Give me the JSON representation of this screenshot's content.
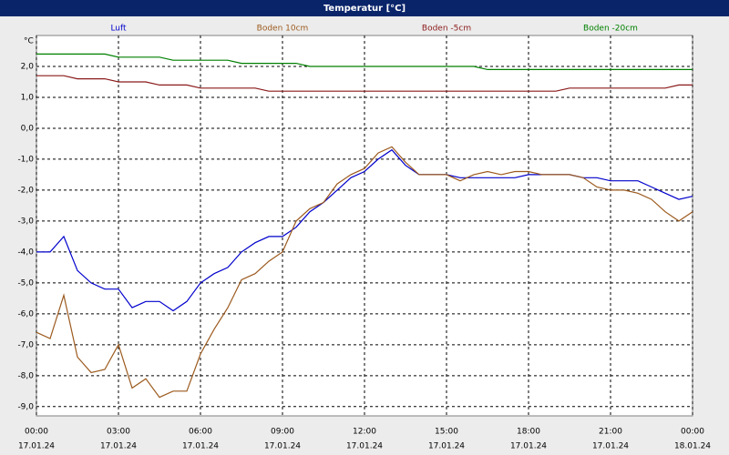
{
  "chart_data": {
    "type": "line",
    "title": "Temperatur [°C]",
    "y_unit": "°C",
    "x": [
      0,
      0.5,
      1,
      1.5,
      2,
      2.5,
      3,
      3.5,
      4,
      4.5,
      5,
      5.5,
      6,
      6.5,
      7,
      7.5,
      8,
      8.5,
      9,
      9.5,
      10,
      10.5,
      11,
      11.5,
      12,
      12.5,
      13,
      13.5,
      14,
      14.5,
      15,
      15.5,
      16,
      16.5,
      17,
      17.5,
      18,
      18.5,
      19,
      19.5,
      20,
      20.5,
      21,
      21.5,
      22,
      22.5,
      23,
      23.5,
      24
    ],
    "series": [
      {
        "name": "Luft",
        "color": "#0000cc",
        "values": [
          -4.0,
          -4.0,
          -3.5,
          -4.6,
          -5.0,
          -5.2,
          -5.2,
          -5.8,
          -5.6,
          -5.6,
          -5.9,
          -5.6,
          -5.0,
          -4.7,
          -4.5,
          -4.0,
          -3.7,
          -3.5,
          -3.5,
          -3.2,
          -2.7,
          -2.4,
          -2.0,
          -1.6,
          -1.4,
          -1.0,
          -0.7,
          -1.2,
          -1.5,
          -1.5,
          -1.5,
          -1.6,
          -1.6,
          -1.6,
          -1.6,
          -1.6,
          -1.5,
          -1.5,
          -1.5,
          -1.5,
          -1.6,
          -1.6,
          -1.7,
          -1.7,
          -1.7,
          -1.9,
          -2.1,
          -2.3,
          -2.2
        ]
      },
      {
        "name": "Boden 10cm",
        "color": "#9c5a1e",
        "values": [
          -6.6,
          -6.8,
          -5.4,
          -7.4,
          -7.9,
          -7.8,
          -7.0,
          -8.4,
          -8.1,
          -8.7,
          -8.5,
          -8.5,
          -7.3,
          -6.5,
          -5.8,
          -4.9,
          -4.7,
          -4.3,
          -4.0,
          -3.0,
          -2.6,
          -2.4,
          -1.8,
          -1.5,
          -1.3,
          -0.8,
          -0.6,
          -1.1,
          -1.5,
          -1.5,
          -1.5,
          -1.7,
          -1.5,
          -1.4,
          -1.5,
          -1.4,
          -1.4,
          -1.5,
          -1.5,
          -1.5,
          -1.6,
          -1.9,
          -2.0,
          -2.0,
          -2.1,
          -2.3,
          -2.7,
          -3.0,
          -2.7
        ]
      },
      {
        "name": "Boden -5cm",
        "color": "#8b1a1a",
        "values": [
          1.7,
          1.7,
          1.7,
          1.6,
          1.6,
          1.6,
          1.5,
          1.5,
          1.5,
          1.4,
          1.4,
          1.4,
          1.3,
          1.3,
          1.3,
          1.3,
          1.3,
          1.2,
          1.2,
          1.2,
          1.2,
          1.2,
          1.2,
          1.2,
          1.2,
          1.2,
          1.2,
          1.2,
          1.2,
          1.2,
          1.2,
          1.2,
          1.2,
          1.2,
          1.2,
          1.2,
          1.2,
          1.2,
          1.2,
          1.3,
          1.3,
          1.3,
          1.3,
          1.3,
          1.3,
          1.3,
          1.3,
          1.4,
          1.4
        ]
      },
      {
        "name": "Boden -20cm",
        "color": "#008000",
        "values": [
          2.4,
          2.4,
          2.4,
          2.4,
          2.4,
          2.4,
          2.3,
          2.3,
          2.3,
          2.3,
          2.2,
          2.2,
          2.2,
          2.2,
          2.2,
          2.1,
          2.1,
          2.1,
          2.1,
          2.1,
          2.0,
          2.0,
          2.0,
          2.0,
          2.0,
          2.0,
          2.0,
          2.0,
          2.0,
          2.0,
          2.0,
          2.0,
          2.0,
          1.9,
          1.9,
          1.9,
          1.9,
          1.9,
          1.9,
          1.9,
          1.9,
          1.9,
          1.9,
          1.9,
          1.9,
          1.9,
          1.9,
          1.9,
          1.9
        ]
      }
    ],
    "xlim": [
      0,
      24
    ],
    "xticks": [
      {
        "value": 0,
        "label": "00:00"
      },
      {
        "value": 3,
        "label": "03:00"
      },
      {
        "value": 6,
        "label": "06:00"
      },
      {
        "value": 9,
        "label": "09:00"
      },
      {
        "value": 12,
        "label": "12:00"
      },
      {
        "value": 15,
        "label": "15:00"
      },
      {
        "value": 18,
        "label": "18:00"
      },
      {
        "value": 21,
        "label": "21:00"
      },
      {
        "value": 24,
        "label": "00:00"
      }
    ],
    "xtick_dates": [
      "17.01.24",
      "17.01.24",
      "17.01.24",
      "17.01.24",
      "17.01.24",
      "17.01.24",
      "17.01.24",
      "17.01.24",
      "18.01.24"
    ],
    "ylim": [
      -9.3,
      3.0
    ],
    "yticks": [
      {
        "value": 2,
        "label": "2,0"
      },
      {
        "value": 1,
        "label": "1,0"
      },
      {
        "value": 0,
        "label": "0,0"
      },
      {
        "value": -1,
        "label": "-1,0"
      },
      {
        "value": -2,
        "label": "-2,0"
      },
      {
        "value": -3,
        "label": "-3,0"
      },
      {
        "value": -4,
        "label": "-4,0"
      },
      {
        "value": -5,
        "label": "-5,0"
      },
      {
        "value": -6,
        "label": "-6,0"
      },
      {
        "value": -7,
        "label": "-7,0"
      },
      {
        "value": -8,
        "label": "-8,0"
      },
      {
        "value": -9,
        "label": "-9,0"
      }
    ],
    "grid": true
  }
}
